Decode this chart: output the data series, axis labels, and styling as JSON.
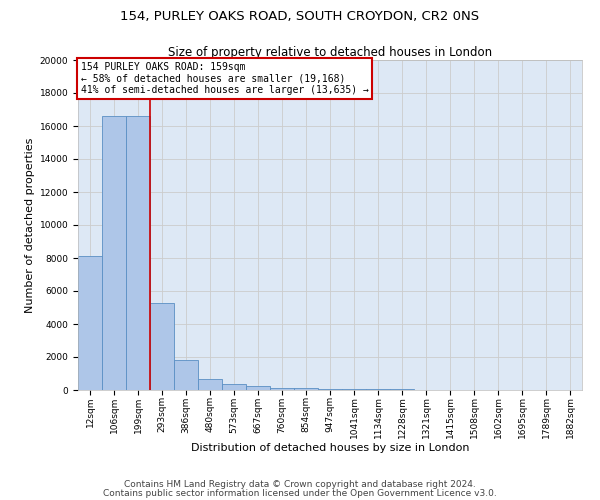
{
  "title1": "154, PURLEY OAKS ROAD, SOUTH CROYDON, CR2 0NS",
  "title2": "Size of property relative to detached houses in London",
  "xlabel": "Distribution of detached houses by size in London",
  "ylabel": "Number of detached properties",
  "footer1": "Contains HM Land Registry data © Crown copyright and database right 2024.",
  "footer2": "Contains public sector information licensed under the Open Government Licence v3.0.",
  "bar_labels": [
    "12sqm",
    "106sqm",
    "199sqm",
    "293sqm",
    "386sqm",
    "480sqm",
    "573sqm",
    "667sqm",
    "760sqm",
    "854sqm",
    "947sqm",
    "1041sqm",
    "1134sqm",
    "1228sqm",
    "1321sqm",
    "1415sqm",
    "1508sqm",
    "1602sqm",
    "1695sqm",
    "1789sqm",
    "1882sqm"
  ],
  "bar_heights": [
    8100,
    16600,
    16600,
    5300,
    1800,
    680,
    350,
    220,
    150,
    100,
    80,
    60,
    45,
    35,
    25,
    20,
    15,
    12,
    10,
    8,
    6
  ],
  "bar_color": "#aec6e8",
  "bar_edge_color": "#5a8fc4",
  "annotation_text": "154 PURLEY OAKS ROAD: 159sqm\n← 58% of detached houses are smaller (19,168)\n41% of semi-detached houses are larger (13,635) →",
  "annotation_box_color": "#ffffff",
  "annotation_box_edge": "#cc0000",
  "vline_color": "#cc0000",
  "vline_x": 2.5,
  "ylim": [
    0,
    20000
  ],
  "yticks": [
    0,
    2000,
    4000,
    6000,
    8000,
    10000,
    12000,
    14000,
    16000,
    18000,
    20000
  ],
  "grid_color": "#cccccc",
  "bg_color": "#dde8f5",
  "title_fontsize": 9.5,
  "subtitle_fontsize": 8.5,
  "ylabel_fontsize": 8,
  "xlabel_fontsize": 8,
  "tick_fontsize": 6.5,
  "annotation_fontsize": 7,
  "footer_fontsize": 6.5
}
